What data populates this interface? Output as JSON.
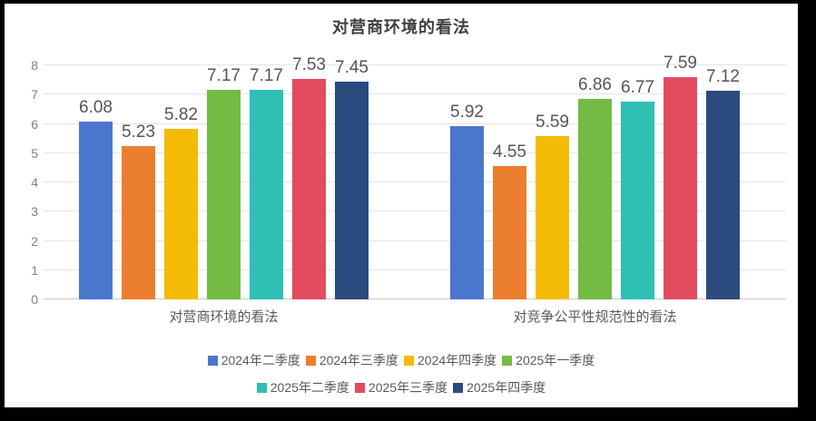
{
  "title": "对营商环境的看法",
  "chart_data": {
    "type": "bar",
    "title": "对营商环境的看法",
    "categories": [
      "对营商环境的看法",
      "对竞争公平性规范性的看法"
    ],
    "series": [
      {
        "name": "2024年二季度",
        "color": "#4B76CD",
        "values": [
          6.08,
          5.92
        ]
      },
      {
        "name": "2024年三季度",
        "color": "#EC7E2F",
        "values": [
          5.23,
          4.55
        ]
      },
      {
        "name": "2024年四季度",
        "color": "#F3BB05",
        "values": [
          5.82,
          5.59
        ]
      },
      {
        "name": "2025年一季度",
        "color": "#73BB44",
        "values": [
          7.17,
          6.86
        ]
      },
      {
        "name": "2025年二季度",
        "color": "#2FBFB3",
        "values": [
          7.17,
          6.77
        ]
      },
      {
        "name": "2025年三季度",
        "color": "#E24C5E",
        "values": [
          7.53,
          7.59
        ]
      },
      {
        "name": "2025年四季度",
        "color": "#2B4A7E",
        "values": [
          7.45,
          7.12
        ]
      }
    ],
    "ylim": [
      0,
      8
    ],
    "yticks": [
      0,
      1,
      2,
      3,
      4,
      5,
      6,
      7,
      8
    ],
    "grid": true,
    "legend_position": "bottom",
    "legend_rows": [
      4,
      3
    ],
    "value_label_decimals": 2
  }
}
